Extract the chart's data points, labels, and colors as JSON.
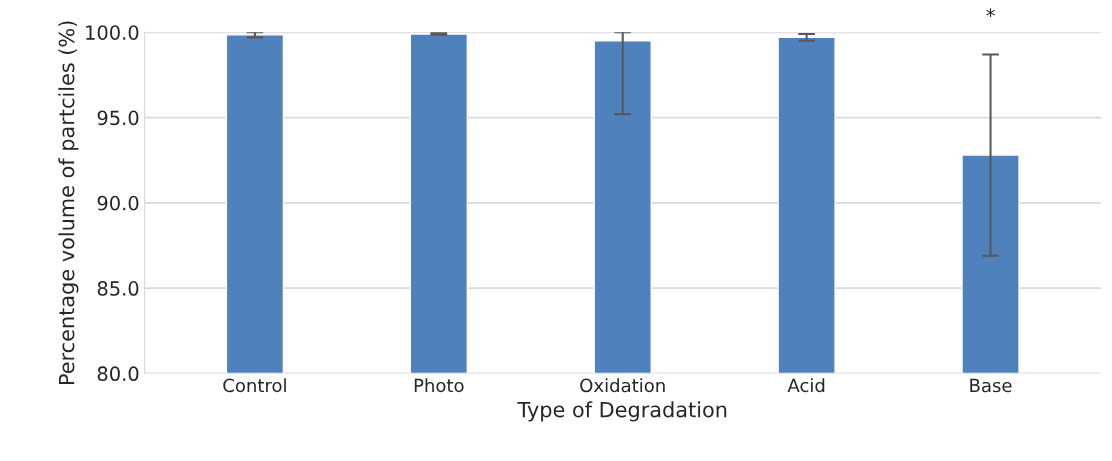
{
  "chart_data": {
    "type": "bar",
    "xlabel": "Type of Degradation",
    "ylabel": "Percentage volume of partciles (%)",
    "categories": [
      "Control",
      "Photo",
      "Oxidation",
      "Acid",
      "Base"
    ],
    "series": [
      {
        "color": "#4f81bd",
        "values": [
          99.85,
          99.9,
          99.5,
          99.7,
          92.8
        ],
        "errors": [
          0.15,
          0.05,
          [
            95.2,
            100.0
          ],
          0.2,
          5.9
        ]
      }
    ],
    "ylim": [
      80,
      100
    ],
    "yticks": [
      {
        "value": 80,
        "label": "80.0"
      },
      {
        "value": 85,
        "label": "85.0"
      },
      {
        "value": 90,
        "label": "90.0"
      },
      {
        "value": 95,
        "label": "95.0"
      },
      {
        "value": 100,
        "label": "100.0"
      }
    ],
    "grid": "y",
    "annotations": [
      "*"
    ]
  }
}
